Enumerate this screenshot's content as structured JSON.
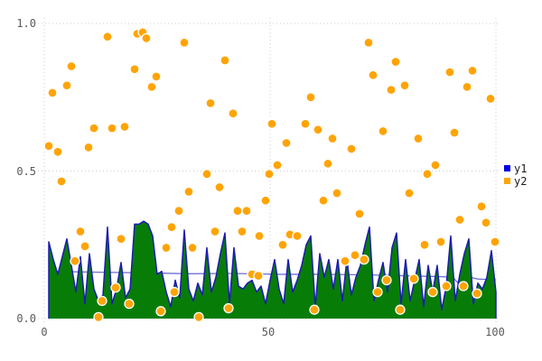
{
  "chart": {
    "y_ticks": [
      "1.0",
      "0.5",
      "0.0"
    ],
    "x_ticks": [
      "0",
      "50",
      "100"
    ],
    "legend": [
      {
        "label": "y1",
        "color": "#0000e0"
      },
      {
        "label": "y2",
        "color": "#ffa405"
      }
    ],
    "colors": {
      "background": "#ffffff",
      "grid": "#cccccc",
      "tick_text": "#5a5a5a",
      "y1_outline": "#1c1cb0",
      "y1_fill": "#077d07",
      "y1_mean_line": "#7070d8",
      "y2_fill": "#ffa405",
      "y2_edge": "#ffffff"
    }
  },
  "chart_data": {
    "type": "mixed",
    "title": "",
    "xlabel": "",
    "ylabel": "",
    "xlim": [
      0,
      100
    ],
    "ylim": [
      0.0,
      1.0
    ],
    "x_tick_values": [
      0,
      50,
      100
    ],
    "y_tick_values": [
      1.0,
      0.5,
      0.0
    ],
    "grid": "dotted",
    "legend_position": "outside-right",
    "series": [
      {
        "name": "y1",
        "type": "area",
        "x_start": 1,
        "x_step": 1,
        "values": [
          0.26,
          0.2,
          0.15,
          0.21,
          0.27,
          0.18,
          0.09,
          0.21,
          0.05,
          0.22,
          0.1,
          0.06,
          0.08,
          0.31,
          0.05,
          0.1,
          0.19,
          0.07,
          0.1,
          0.32,
          0.32,
          0.33,
          0.32,
          0.28,
          0.15,
          0.16,
          0.09,
          0.04,
          0.13,
          0.07,
          0.3,
          0.1,
          0.06,
          0.12,
          0.08,
          0.24,
          0.09,
          0.14,
          0.22,
          0.29,
          0.05,
          0.24,
          0.11,
          0.1,
          0.12,
          0.13,
          0.09,
          0.11,
          0.05,
          0.13,
          0.2,
          0.1,
          0.05,
          0.2,
          0.09,
          0.13,
          0.18,
          0.25,
          0.28,
          0.04,
          0.22,
          0.14,
          0.2,
          0.1,
          0.2,
          0.06,
          0.2,
          0.08,
          0.14,
          0.18,
          0.25,
          0.31,
          0.06,
          0.13,
          0.19,
          0.09,
          0.24,
          0.29,
          0.05,
          0.2,
          0.06,
          0.13,
          0.2,
          0.04,
          0.18,
          0.09,
          0.18,
          0.03,
          0.11,
          0.28,
          0.06,
          0.15,
          0.22,
          0.27,
          0.05,
          0.12,
          0.1,
          0.14,
          0.23,
          0.09
        ]
      },
      {
        "name": "y1-mean-line",
        "type": "line",
        "points": [
          [
            1,
            0.16
          ],
          [
            12,
            0.157
          ],
          [
            22,
            0.155
          ],
          [
            32,
            0.152
          ],
          [
            42,
            0.153
          ],
          [
            52,
            0.15
          ],
          [
            62,
            0.15
          ],
          [
            72,
            0.148
          ],
          [
            80,
            0.145
          ],
          [
            88,
            0.142
          ],
          [
            90.5,
            0.14
          ],
          [
            91.5,
            0.122
          ],
          [
            92.5,
            0.146
          ],
          [
            96,
            0.134
          ],
          [
            100,
            0.131
          ]
        ]
      },
      {
        "name": "y2",
        "type": "scatter",
        "points": [
          [
            1.0,
            0.585
          ],
          [
            1.8,
            0.765
          ],
          [
            3.0,
            0.565
          ],
          [
            3.8,
            0.465
          ],
          [
            5.0,
            0.79
          ],
          [
            6.0,
            0.855
          ],
          [
            6.8,
            0.195
          ],
          [
            8.0,
            0.295
          ],
          [
            9.0,
            0.245
          ],
          [
            9.8,
            0.58
          ],
          [
            11.0,
            0.645
          ],
          [
            12.0,
            0.005
          ],
          [
            12.8,
            0.06
          ],
          [
            14.0,
            0.955
          ],
          [
            15.0,
            0.645
          ],
          [
            15.8,
            0.105
          ],
          [
            17.0,
            0.27
          ],
          [
            17.8,
            0.65
          ],
          [
            18.8,
            0.05
          ],
          [
            20.0,
            0.845
          ],
          [
            20.6,
            0.965
          ],
          [
            21.8,
            0.97
          ],
          [
            22.6,
            0.95
          ],
          [
            23.8,
            0.785
          ],
          [
            24.8,
            0.82
          ],
          [
            25.8,
            0.025
          ],
          [
            27.0,
            0.24
          ],
          [
            28.2,
            0.31
          ],
          [
            28.8,
            0.09
          ],
          [
            29.8,
            0.365
          ],
          [
            31.0,
            0.935
          ],
          [
            32.0,
            0.43
          ],
          [
            32.8,
            0.24
          ],
          [
            34.2,
            0.005
          ],
          [
            36.0,
            0.49
          ],
          [
            36.8,
            0.73
          ],
          [
            37.8,
            0.295
          ],
          [
            38.8,
            0.445
          ],
          [
            40.0,
            0.875
          ],
          [
            40.8,
            0.035
          ],
          [
            41.8,
            0.695
          ],
          [
            42.8,
            0.365
          ],
          [
            43.8,
            0.295
          ],
          [
            44.8,
            0.365
          ],
          [
            46.0,
            0.15
          ],
          [
            47.4,
            0.145
          ],
          [
            47.6,
            0.28
          ],
          [
            49.0,
            0.4
          ],
          [
            49.8,
            0.49
          ],
          [
            50.4,
            0.66
          ],
          [
            51.6,
            0.52
          ],
          [
            52.8,
            0.25
          ],
          [
            53.6,
            0.595
          ],
          [
            54.4,
            0.285
          ],
          [
            56.0,
            0.28
          ],
          [
            57.8,
            0.66
          ],
          [
            59.0,
            0.75
          ],
          [
            59.8,
            0.03
          ],
          [
            60.6,
            0.64
          ],
          [
            61.8,
            0.4
          ],
          [
            62.8,
            0.525
          ],
          [
            63.8,
            0.61
          ],
          [
            64.8,
            0.425
          ],
          [
            66.6,
            0.195
          ],
          [
            68.0,
            0.575
          ],
          [
            68.8,
            0.215
          ],
          [
            69.8,
            0.355
          ],
          [
            70.8,
            0.2
          ],
          [
            71.8,
            0.935
          ],
          [
            72.8,
            0.825
          ],
          [
            73.8,
            0.09
          ],
          [
            75.0,
            0.635
          ],
          [
            75.8,
            0.13
          ],
          [
            76.8,
            0.775
          ],
          [
            77.8,
            0.87
          ],
          [
            78.8,
            0.03
          ],
          [
            79.8,
            0.79
          ],
          [
            80.8,
            0.425
          ],
          [
            81.8,
            0.135
          ],
          [
            82.8,
            0.61
          ],
          [
            84.2,
            0.25
          ],
          [
            84.8,
            0.49
          ],
          [
            86.0,
            0.09
          ],
          [
            86.6,
            0.52
          ],
          [
            87.8,
            0.26
          ],
          [
            89.0,
            0.11
          ],
          [
            89.8,
            0.835
          ],
          [
            90.8,
            0.63
          ],
          [
            92.0,
            0.335
          ],
          [
            92.8,
            0.11
          ],
          [
            93.6,
            0.785
          ],
          [
            94.8,
            0.84
          ],
          [
            95.8,
            0.085
          ],
          [
            96.8,
            0.38
          ],
          [
            97.8,
            0.325
          ],
          [
            98.8,
            0.745
          ],
          [
            99.8,
            0.26
          ]
        ]
      }
    ]
  }
}
